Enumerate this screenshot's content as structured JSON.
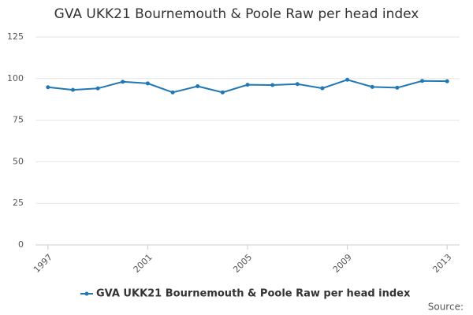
{
  "chart_data": {
    "type": "line",
    "title": "GVA UKK21 Bournemouth & Poole Raw per head index",
    "x": [
      1997,
      1998,
      1999,
      2000,
      2001,
      2002,
      2003,
      2004,
      2005,
      2006,
      2007,
      2008,
      2009,
      2010,
      2011,
      2012,
      2013
    ],
    "series": [
      {
        "name": "GVA UKK21 Bournemouth & Poole Raw per head index",
        "color": "#1f77b4",
        "values": [
          94.8,
          93.2,
          94.1,
          98.1,
          97.1,
          91.7,
          95.4,
          91.7,
          96.3,
          96.1,
          96.7,
          94.2,
          99.3,
          95.0,
          94.5,
          98.6,
          98.4
        ]
      }
    ],
    "xlim": [
      1996.5,
      2013.5
    ],
    "xticks": [
      1997,
      2001,
      2005,
      2009,
      2013
    ],
    "ylim": [
      0,
      125
    ],
    "yticks": [
      0,
      25,
      50,
      75,
      100,
      125
    ],
    "grid": true,
    "legend": "bottom",
    "source": "Source:"
  }
}
